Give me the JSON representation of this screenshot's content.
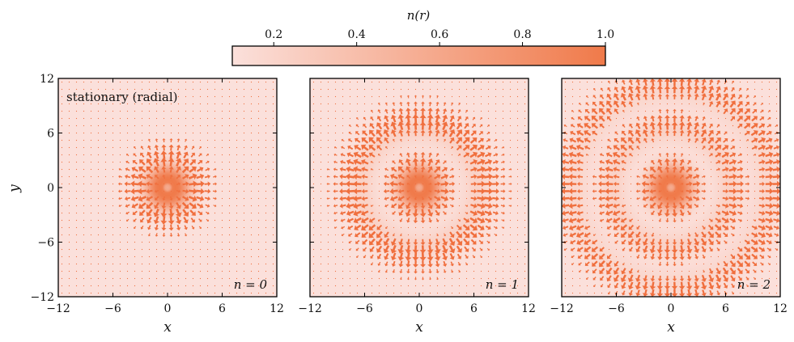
{
  "chart_data": {
    "type": "quiver",
    "colorbar": {
      "label": "n(r)",
      "ticks": [
        0.2,
        0.4,
        0.6,
        0.8,
        1.0
      ],
      "tick_labels": [
        "0.2",
        "0.4",
        "0.6",
        "0.8",
        "1.0"
      ],
      "range": [
        0.1,
        1.0
      ],
      "color_low": "#fbe0db",
      "color_high": "#f07a4a"
    },
    "arrow_color": "#f06f3e",
    "background_color": "#f9ddd7",
    "xlim": [
      -12,
      12
    ],
    "ylim": [
      -12,
      12
    ],
    "x_ticks": [
      -12,
      -6,
      0,
      6,
      12
    ],
    "x_tick_labels": [
      "−12",
      "−6",
      "0",
      "6",
      "12"
    ],
    "y_ticks": [
      -12,
      -6,
      0,
      6,
      12
    ],
    "y_tick_labels": [
      "−12",
      "−6",
      "0",
      "6",
      "12"
    ],
    "xlabel": "x",
    "ylabel": "y",
    "panels": [
      {
        "n": 0,
        "label": "n = 0",
        "annotation": "stationary (radial)"
      },
      {
        "n": 1,
        "label": "n = 1",
        "annotation": ""
      },
      {
        "n": 2,
        "label": "n = 2",
        "annotation": ""
      }
    ]
  }
}
